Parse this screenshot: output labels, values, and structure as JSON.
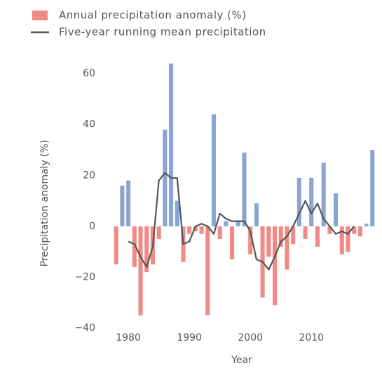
{
  "chart_data": {
    "type": "bar",
    "x_label": "Year",
    "y_label": "Precipitation anomaly (%)",
    "xlim": [
      1977,
      2021
    ],
    "xticks": [
      1980,
      1990,
      2000,
      2010
    ],
    "ylim": [
      -40,
      65
    ],
    "yticks": [
      {
        "value": -40,
        "label": "−40"
      },
      {
        "value": -20,
        "label": "−20"
      },
      0,
      20,
      40,
      60
    ],
    "grid": false,
    "legend": "top",
    "series": [
      {
        "name": "Annual precipitation anomaly (%)",
        "type": "bar",
        "color": "#f08a86",
        "positive_color": "#8aa4d4",
        "x": [
          1978,
          1979,
          1980,
          1981,
          1982,
          1983,
          1984,
          1985,
          1986,
          1987,
          1988,
          1989,
          1990,
          1991,
          1992,
          1993,
          1994,
          1995,
          1996,
          1997,
          1998,
          1999,
          2000,
          2001,
          2002,
          2003,
          2004,
          2005,
          2006,
          2007,
          2008,
          2009,
          2010,
          2011,
          2012,
          2013,
          2014,
          2015,
          2016,
          2017,
          2018,
          2019,
          2020
        ],
        "values": [
          -15,
          16,
          18,
          -16,
          -35,
          -18,
          -15,
          -5,
          38,
          64,
          10,
          -14,
          -3,
          -2,
          -3,
          -35,
          44,
          -5,
          2,
          -13,
          2,
          29,
          -11,
          9,
          -28,
          -12,
          -31,
          -8,
          -17,
          -7,
          19,
          -5,
          19,
          -8,
          25,
          -3,
          13,
          -11,
          -10,
          -3,
          -4,
          1,
          30
        ]
      },
      {
        "name": "Five-year running mean precipitation",
        "type": "line",
        "color": "#555555",
        "x": [
          1980,
          1981,
          1982,
          1983,
          1984,
          1985,
          1986,
          1987,
          1988,
          1989,
          1990,
          1991,
          1992,
          1993,
          1994,
          1995,
          1996,
          1997,
          1998,
          1999,
          2000,
          2001,
          2002,
          2003,
          2004,
          2005,
          2006,
          2007,
          2008,
          2009,
          2010,
          2011,
          2012,
          2013,
          2014,
          2015,
          2016,
          2017
        ],
        "values": [
          -6,
          -7,
          -12,
          -16,
          -8,
          18,
          21,
          19,
          19,
          -7,
          -6,
          0,
          1,
          0,
          -3,
          5,
          3,
          2,
          2,
          2,
          -2,
          -13,
          -14,
          -17,
          -12,
          -6,
          -4,
          0,
          5,
          10,
          5,
          9,
          3,
          0,
          -3,
          -2,
          -3,
          0
        ]
      }
    ]
  }
}
